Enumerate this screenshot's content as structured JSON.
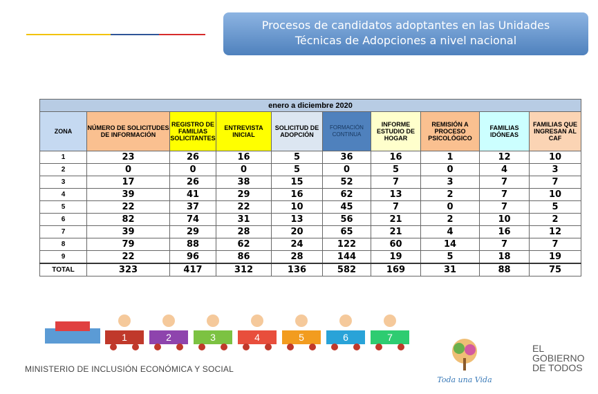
{
  "header": {
    "title_line1": "Procesos de candidatos adoptantes en las Unidades",
    "title_line2": "Técnicas de Adopciones a nivel nacional"
  },
  "table": {
    "period": "enero a diciembre 2020",
    "columns": [
      "ZONA",
      "NÚMERO DE SOLICITUDES DE INFORMACIÓN",
      "REGISTRO DE FAMILIAS SOLICITANTES",
      "ENTREVISTA INICIAL",
      "SOLICITUD DE ADOPCIÓN",
      "FORMACIÓN CONTINUA",
      "INFORME ESTUDIO DE HOGAR",
      "REMISIÓN A PROCESO PSICOLÓGICO",
      "FAMILIAS IDÓNEAS",
      "FAMILIAS QUE INGRESAN AL CAF"
    ],
    "rows": [
      [
        "1",
        23,
        26,
        16,
        5,
        36,
        16,
        1,
        12,
        10
      ],
      [
        "2",
        0,
        0,
        0,
        5,
        0,
        5,
        0,
        4,
        3
      ],
      [
        "3",
        17,
        26,
        38,
        15,
        52,
        7,
        3,
        7,
        7
      ],
      [
        "4",
        39,
        41,
        29,
        16,
        62,
        13,
        2,
        7,
        10
      ],
      [
        "5",
        22,
        37,
        22,
        10,
        45,
        7,
        0,
        7,
        5
      ],
      [
        "6",
        82,
        74,
        31,
        13,
        56,
        21,
        2,
        10,
        2
      ],
      [
        "7",
        39,
        29,
        28,
        20,
        65,
        21,
        4,
        16,
        12
      ],
      [
        "8",
        79,
        88,
        62,
        24,
        122,
        60,
        14,
        7,
        7
      ],
      [
        "9",
        22,
        96,
        86,
        28,
        144,
        19,
        5,
        18,
        19
      ]
    ],
    "total": [
      "TOTAL",
      323,
      417,
      312,
      136,
      582,
      169,
      31,
      88,
      75
    ]
  },
  "train": {
    "cars": [
      "1",
      "2",
      "3",
      "4",
      "5",
      "6",
      "7"
    ]
  },
  "footer": {
    "ministry": "MINISTERIO DE INCLUSIÓN ECONÓMICA Y SOCIAL",
    "slogan": "Toda una Vida",
    "gov_line1": "EL",
    "gov_line2": "GOBIERNO",
    "gov_line3": "DE TODOS"
  }
}
